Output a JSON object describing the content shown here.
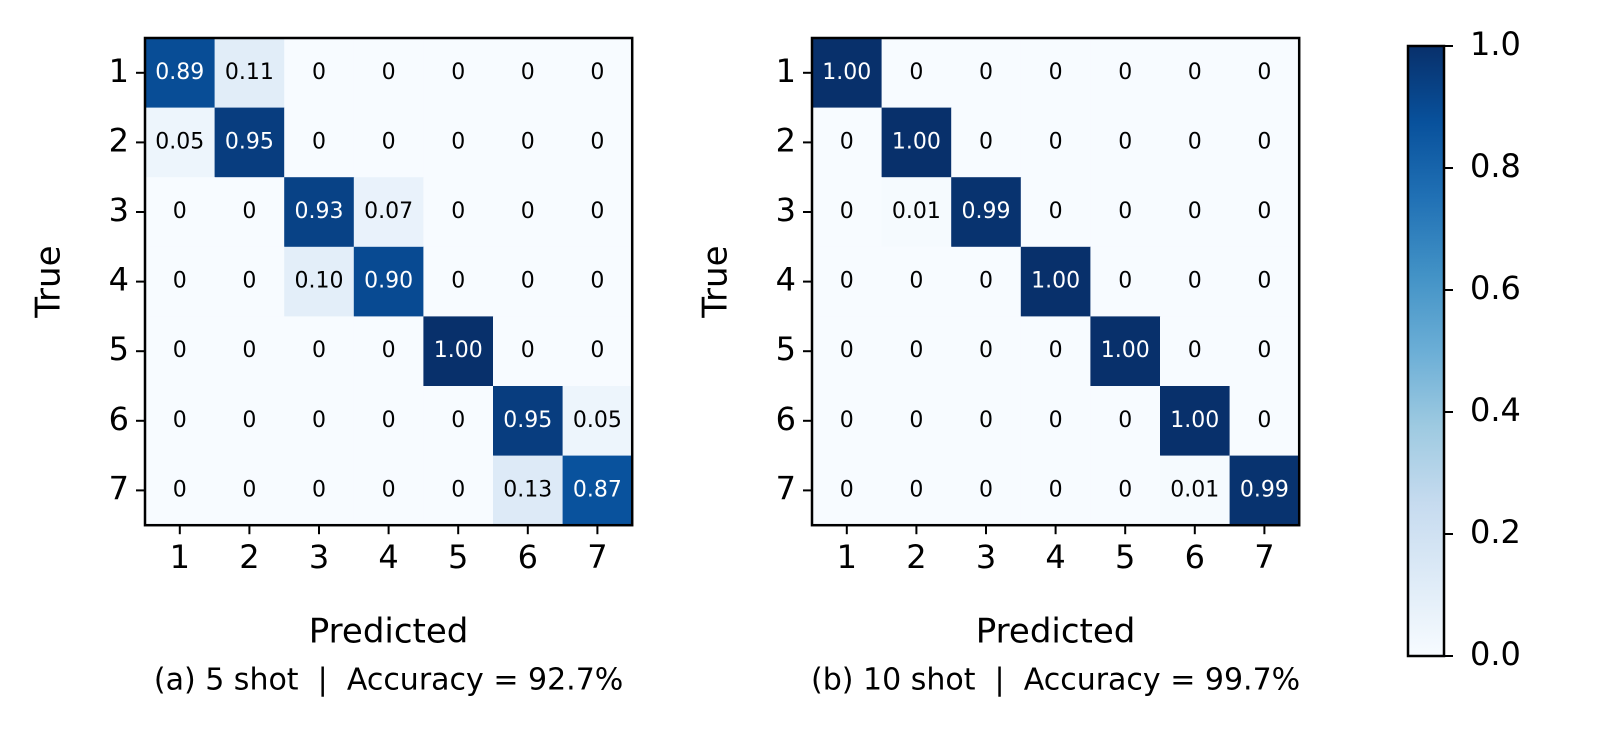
{
  "chart_data": [
    {
      "type": "heatmap",
      "colormap": "Blues",
      "x_label": "Predicted",
      "y_label": "True",
      "caption": "(a) 5 shot  |  Accuracy = 92.7%",
      "x_categories": [
        "1",
        "2",
        "3",
        "4",
        "5",
        "6",
        "7"
      ],
      "y_categories": [
        "1",
        "2",
        "3",
        "4",
        "5",
        "6",
        "7"
      ],
      "values": [
        [
          0.89,
          0.11,
          0,
          0,
          0,
          0,
          0
        ],
        [
          0.05,
          0.95,
          0,
          0,
          0,
          0,
          0
        ],
        [
          0,
          0,
          0.93,
          0.07,
          0,
          0,
          0
        ],
        [
          0,
          0,
          0.1,
          0.9,
          0,
          0,
          0
        ],
        [
          0,
          0,
          0,
          0,
          1,
          0,
          0
        ],
        [
          0,
          0,
          0,
          0,
          0,
          0.95,
          0.05
        ],
        [
          0,
          0,
          0,
          0,
          0,
          0.13,
          0.87
        ]
      ],
      "value_labels": [
        [
          "0.89",
          "0.11",
          "0",
          "0",
          "0",
          "0",
          "0"
        ],
        [
          "0.05",
          "0.95",
          "0",
          "0",
          "0",
          "0",
          "0"
        ],
        [
          "0",
          "0",
          "0.93",
          "0.07",
          "0",
          "0",
          "0"
        ],
        [
          "0",
          "0",
          "0.10",
          "0.90",
          "0",
          "0",
          "0"
        ],
        [
          "0",
          "0",
          "0",
          "0",
          "1.00",
          "0",
          "0"
        ],
        [
          "0",
          "0",
          "0",
          "0",
          "0",
          "0.95",
          "0.05"
        ],
        [
          "0",
          "0",
          "0",
          "0",
          "0",
          "0.13",
          "0.87"
        ]
      ]
    },
    {
      "type": "heatmap",
      "colormap": "Blues",
      "x_label": "Predicted",
      "y_label": "True",
      "caption": "(b) 10 shot  |  Accuracy = 99.7%",
      "x_categories": [
        "1",
        "2",
        "3",
        "4",
        "5",
        "6",
        "7"
      ],
      "y_categories": [
        "1",
        "2",
        "3",
        "4",
        "5",
        "6",
        "7"
      ],
      "values": [
        [
          1,
          0,
          0,
          0,
          0,
          0,
          0
        ],
        [
          0,
          1,
          0,
          0,
          0,
          0,
          0
        ],
        [
          0,
          0.01,
          0.99,
          0,
          0,
          0,
          0
        ],
        [
          0,
          0,
          0,
          1,
          0,
          0,
          0
        ],
        [
          0,
          0,
          0,
          0,
          1,
          0,
          0
        ],
        [
          0,
          0,
          0,
          0,
          0,
          1,
          0
        ],
        [
          0,
          0,
          0,
          0,
          0,
          0.01,
          0.99
        ]
      ],
      "value_labels": [
        [
          "1.00",
          "0",
          "0",
          "0",
          "0",
          "0",
          "0"
        ],
        [
          "0",
          "1.00",
          "0",
          "0",
          "0",
          "0",
          "0"
        ],
        [
          "0",
          "0.01",
          "0.99",
          "0",
          "0",
          "0",
          "0"
        ],
        [
          "0",
          "0",
          "0",
          "1.00",
          "0",
          "0",
          "0"
        ],
        [
          "0",
          "0",
          "0",
          "0",
          "1.00",
          "0",
          "0"
        ],
        [
          "0",
          "0",
          "0",
          "0",
          "0",
          "1.00",
          "0"
        ],
        [
          "0",
          "0",
          "0",
          "0",
          "0",
          "0.01",
          "0.99"
        ]
      ]
    },
    {
      "type": "colorbar",
      "colormap": "Blues",
      "ylim": [
        0,
        1
      ],
      "yticks": [
        {
          "value": 0,
          "label": "0.0"
        },
        0.2,
        0.4,
        0.6,
        0.8,
        {
          "value": 1,
          "label": "1.0"
        }
      ]
    }
  ]
}
